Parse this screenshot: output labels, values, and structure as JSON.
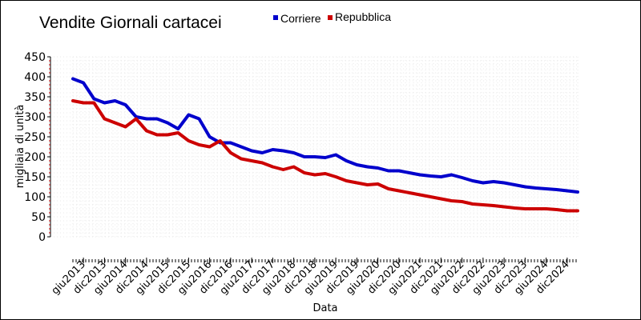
{
  "chart_data": {
    "type": "line",
    "title": "Vendite Giornali cartacei",
    "xlabel": "Data",
    "ylabel": "migliaia di unità",
    "ylim": [
      0,
      450
    ],
    "yticks": [
      0,
      50,
      100,
      150,
      200,
      250,
      300,
      350,
      400,
      450
    ],
    "grid": true,
    "legend_position": "top-center",
    "x": [
      "2013-03",
      "2013-06",
      "2013-09",
      "2013-12",
      "2014-03",
      "2014-06",
      "2014-09",
      "2014-12",
      "2015-03",
      "2015-06",
      "2015-09",
      "2015-12",
      "2016-03",
      "2016-06",
      "2016-09",
      "2016-12",
      "2017-03",
      "2017-06",
      "2017-09",
      "2017-12",
      "2018-03",
      "2018-06",
      "2018-09",
      "2018-12",
      "2019-03",
      "2019-06",
      "2019-09",
      "2019-12",
      "2020-03",
      "2020-06",
      "2020-09",
      "2020-12",
      "2021-03",
      "2021-06",
      "2021-09",
      "2021-12",
      "2022-03",
      "2022-06",
      "2022-09",
      "2022-12",
      "2023-03",
      "2023-06",
      "2023-09",
      "2023-12",
      "2024-03",
      "2024-06",
      "2024-09",
      "2024-12",
      "2025-03"
    ],
    "x_tick_labels": [
      "giu2013",
      "dic2013",
      "giu2014",
      "dic2014",
      "giu2015",
      "dic2015",
      "giu2016",
      "dic2016",
      "giu2017",
      "dic2017",
      "giu2018",
      "dic2018",
      "giu2019",
      "dic2019",
      "giu2020",
      "dic2020",
      "giu2021",
      "dic2021",
      "giu2022",
      "dic2022",
      "giu2023",
      "dic2023",
      "giu2024",
      "dic2024"
    ],
    "x_tick_dates": [
      "2013-06",
      "2013-12",
      "2014-06",
      "2014-12",
      "2015-06",
      "2015-12",
      "2016-06",
      "2016-12",
      "2017-06",
      "2017-12",
      "2018-06",
      "2018-12",
      "2019-06",
      "2019-12",
      "2020-06",
      "2020-12",
      "2021-06",
      "2021-12",
      "2022-06",
      "2022-12",
      "2023-06",
      "2023-12",
      "2024-06",
      "2024-12"
    ],
    "series": [
      {
        "name": "Corriere",
        "color": "#0000cc",
        "values": [
          395,
          385,
          345,
          335,
          340,
          330,
          300,
          295,
          295,
          285,
          270,
          305,
          295,
          250,
          235,
          235,
          225,
          215,
          210,
          218,
          215,
          210,
          200,
          200,
          198,
          205,
          190,
          180,
          175,
          172,
          165,
          165,
          160,
          155,
          152,
          150,
          155,
          148,
          140,
          135,
          138,
          135,
          130,
          125,
          122,
          120,
          118,
          115,
          112
        ]
      },
      {
        "name": "Repubblica",
        "color": "#cc0000",
        "values": [
          340,
          335,
          335,
          295,
          285,
          275,
          295,
          265,
          255,
          255,
          260,
          240,
          230,
          225,
          240,
          210,
          195,
          190,
          185,
          175,
          168,
          175,
          160,
          155,
          158,
          150,
          140,
          135,
          130,
          132,
          120,
          115,
          110,
          105,
          100,
          95,
          90,
          88,
          82,
          80,
          78,
          75,
          72,
          70,
          70,
          70,
          68,
          65,
          65
        ]
      }
    ]
  }
}
